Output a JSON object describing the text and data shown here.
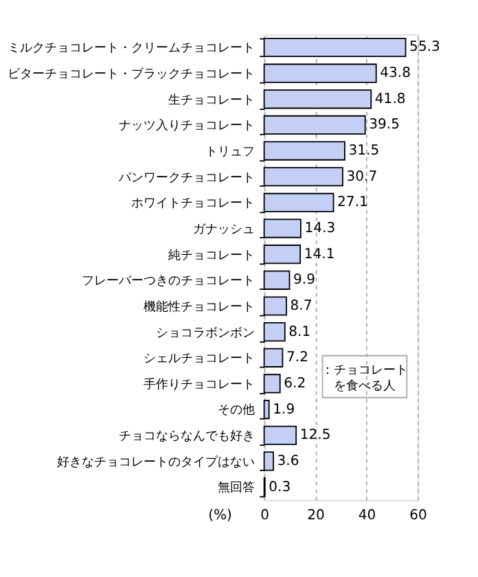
{
  "chart_data": {
    "type": "bar",
    "orientation": "horizontal",
    "xlabel": "(%)",
    "categories": [
      "ミルクチョコレート・クリームチョコレート",
      "ビターチョコレート・ブラックチョコレート",
      "生チョコレート",
      "ナッツ入りチョコレート",
      "トリュフ",
      "パンワークチョコレート",
      "ホワイトチョコレート",
      "ガナッシュ",
      "純チョコレート",
      "フレーバーつきのチョコレート",
      "機能性チョコレート",
      "ショコラボンボン",
      "シェルチョコレート",
      "手作りチョコレート",
      "その他",
      "チョコならなんでも好き",
      "好きなチョコレートのタイプはない",
      "無回答"
    ],
    "values": [
      55.3,
      43.8,
      41.8,
      39.5,
      31.5,
      30.7,
      27.1,
      14.3,
      14.1,
      9.9,
      8.7,
      8.1,
      7.2,
      6.2,
      1.9,
      12.5,
      3.6,
      0.3
    ],
    "color": "#c4cff5",
    "xlim": [
      0,
      60
    ],
    "xticks": [
      0,
      20,
      40,
      60
    ],
    "grid": "x",
    "data_labels": true,
    "annotations": [
      "：チョコレートを食べる人"
    ]
  }
}
